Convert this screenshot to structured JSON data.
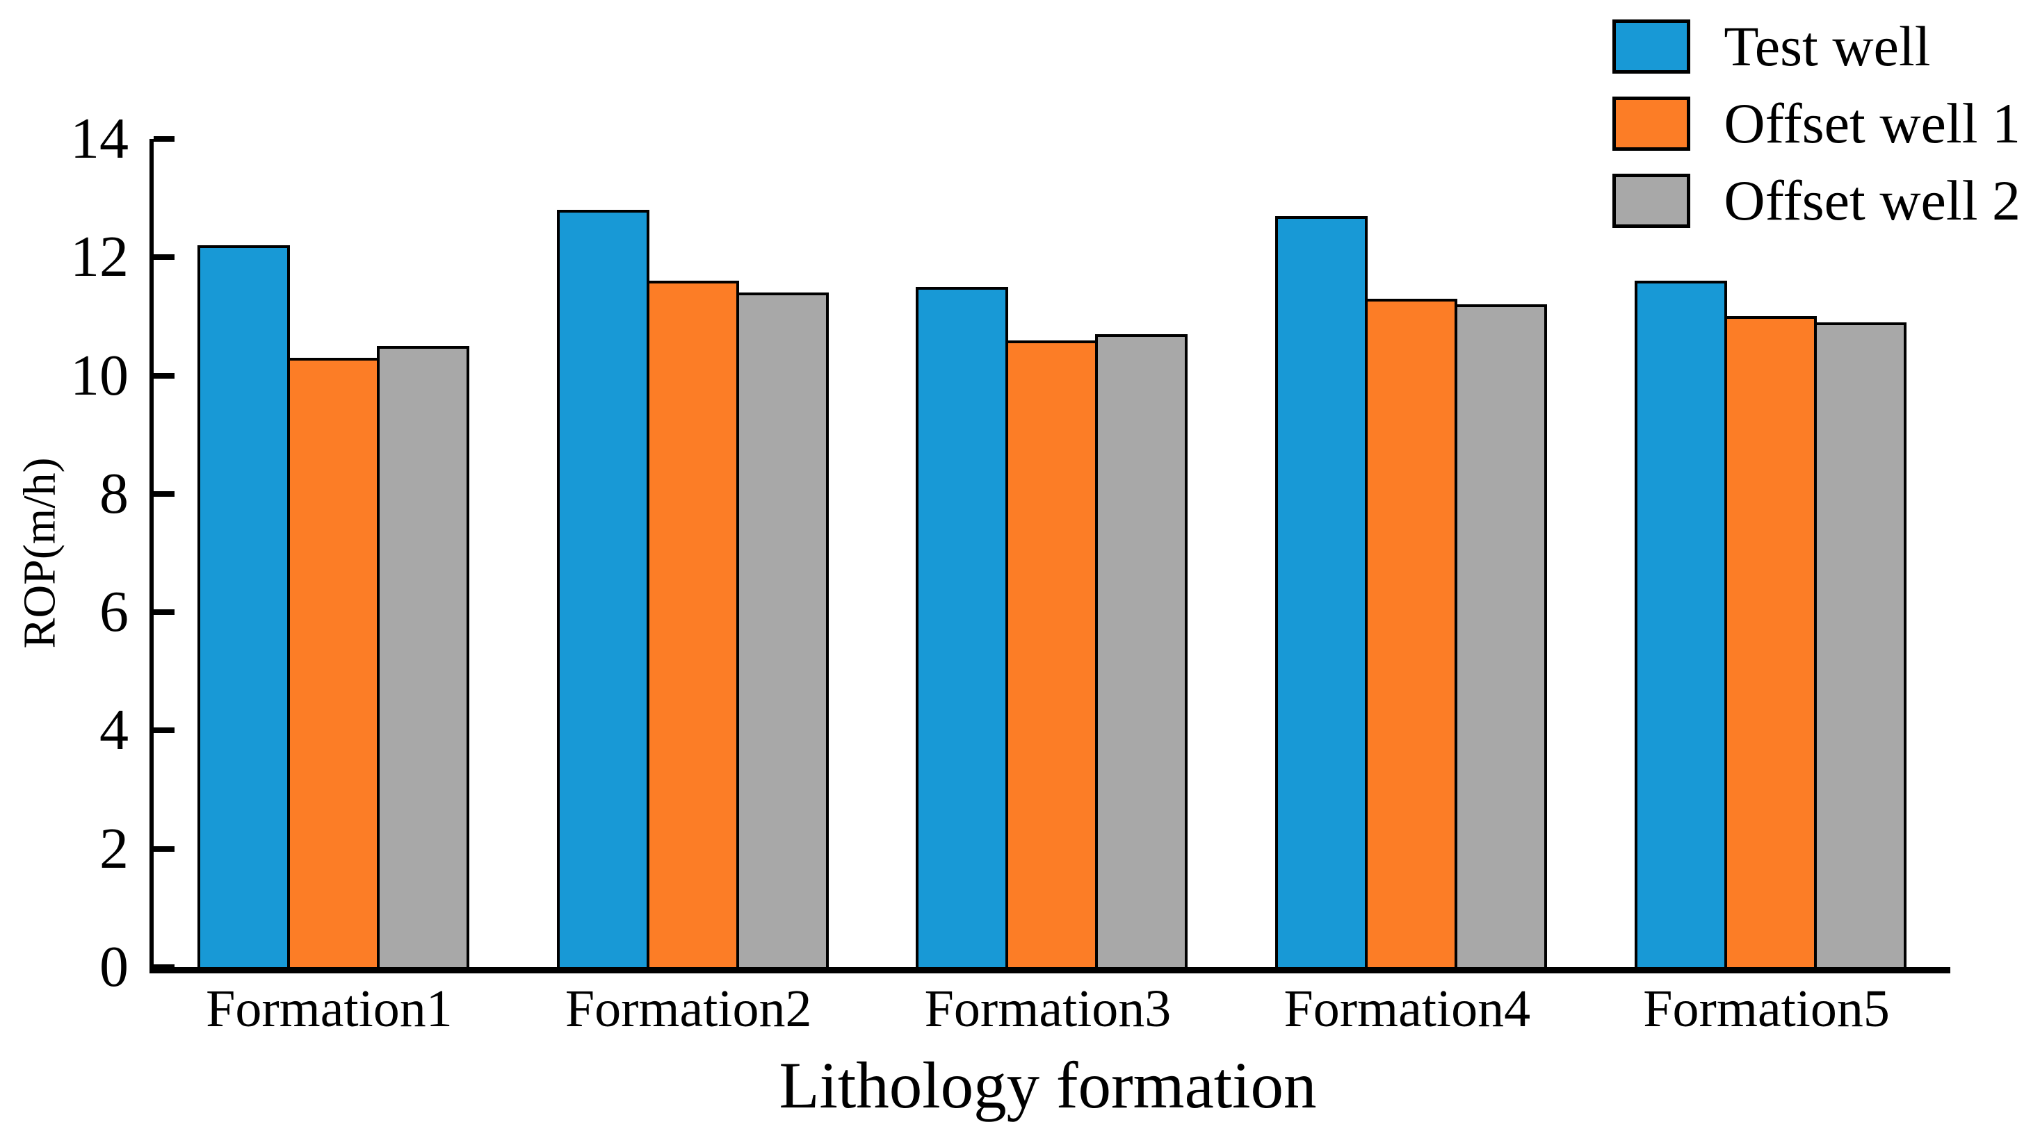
{
  "chart_data": {
    "type": "bar",
    "categories": [
      "Formation1",
      "Formation2",
      "Formation3",
      "Formation4",
      "Formation5"
    ],
    "series": [
      {
        "name": "Test well",
        "color": "#1899D6",
        "values": [
          12.2,
          12.8,
          11.5,
          12.7,
          11.6
        ]
      },
      {
        "name": "Offset well 1",
        "color": "#FC7D26",
        "values": [
          10.3,
          11.6,
          10.6,
          11.3,
          11.0
        ]
      },
      {
        "name": "Offset well 2",
        "color": "#A8A8A8",
        "values": [
          10.5,
          11.4,
          10.7,
          11.2,
          10.9
        ]
      }
    ],
    "title": "",
    "xlabel": "Lithology formation",
    "ylabel": "ROP(m/h)",
    "ylim": [
      0,
      14
    ],
    "yticks": [
      0,
      2,
      4,
      6,
      8,
      10,
      12,
      14
    ],
    "grid": false,
    "legend_position": "top-right",
    "bar_edge_color": "#000000",
    "axis_color": "#000000"
  }
}
